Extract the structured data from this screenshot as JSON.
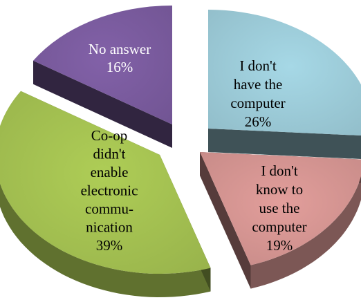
{
  "chart_data": {
    "type": "pie",
    "style": "3d-exploded",
    "title": "",
    "legend": "none",
    "slices": [
      {
        "label_lines": [
          "I don't",
          "have the",
          "computer"
        ],
        "value": 26,
        "value_label": "26%",
        "color": "#a6d8e6",
        "label_color": "#000000"
      },
      {
        "label_lines": [
          "I don't",
          "know to",
          "use the",
          "computer"
        ],
        "value": 19,
        "value_label": "19%",
        "color": "#e29e9b",
        "label_color": "#000000"
      },
      {
        "label_lines": [
          "Co-op",
          "didn't",
          "enable",
          "electronic",
          "commu-",
          "nication"
        ],
        "value": 39,
        "value_label": "39%",
        "color": "#aecd56",
        "label_color": "#000000"
      },
      {
        "label_lines": [
          "No answer"
        ],
        "value": 16,
        "value_label": "16%",
        "color": "#8261a8",
        "label_color": "#ffffff"
      }
    ]
  }
}
